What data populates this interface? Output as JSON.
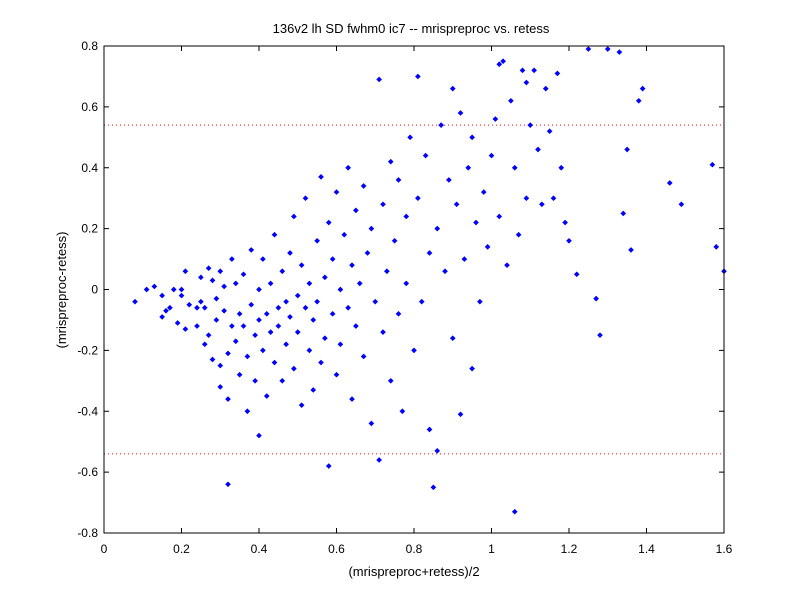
{
  "chart_data": {
    "type": "scatter",
    "title": "136v2 lh SD fwhm0 ic7 -- mrispreproc vs. retess",
    "xlabel": "(mrispreproc+retess)/2",
    "ylabel": "(mrispreproc-retess)",
    "xlim": [
      0,
      1.6
    ],
    "ylim": [
      -0.8,
      0.8
    ],
    "xticks": [
      "0",
      "0.2",
      "0.4",
      "0.6",
      "0.8",
      "1",
      "1.2",
      "1.4",
      "1.6"
    ],
    "yticks": [
      "-0.8",
      "-0.6",
      "-0.4",
      "-0.2",
      "0",
      "0.2",
      "0.4",
      "0.6",
      "0.8"
    ],
    "grid": false,
    "marker_color": "#0000ff",
    "reference_lines": [
      {
        "y": 0.54,
        "style": "dotted",
        "color": "#ff0000"
      },
      {
        "y": -0.54,
        "style": "dotted",
        "color": "#ff0000"
      }
    ],
    "points": [
      [
        0.08,
        -0.04
      ],
      [
        0.11,
        0.0
      ],
      [
        0.13,
        0.01
      ],
      [
        0.15,
        -0.02
      ],
      [
        0.15,
        -0.09
      ],
      [
        0.16,
        -0.07
      ],
      [
        0.17,
        -0.06
      ],
      [
        0.19,
        -0.11
      ],
      [
        0.18,
        0.0
      ],
      [
        0.2,
        -0.02
      ],
      [
        0.2,
        0.0
      ],
      [
        0.22,
        -0.05
      ],
      [
        0.21,
        -0.13
      ],
      [
        0.21,
        0.06
      ],
      [
        0.24,
        -0.06
      ],
      [
        0.24,
        -0.12
      ],
      [
        0.25,
        -0.04
      ],
      [
        0.25,
        0.04
      ],
      [
        0.26,
        -0.06
      ],
      [
        0.26,
        -0.18
      ],
      [
        0.27,
        0.07
      ],
      [
        0.27,
        -0.15
      ],
      [
        0.28,
        0.03
      ],
      [
        0.28,
        -0.23
      ],
      [
        0.29,
        -0.1
      ],
      [
        0.29,
        -0.03
      ],
      [
        0.3,
        0.06
      ],
      [
        0.3,
        -0.25
      ],
      [
        0.3,
        -0.32
      ],
      [
        0.31,
        -0.07
      ],
      [
        0.31,
        0.01
      ],
      [
        0.32,
        -0.36
      ],
      [
        0.32,
        -0.64
      ],
      [
        0.32,
        -0.21
      ],
      [
        0.33,
        0.1
      ],
      [
        0.33,
        -0.12
      ],
      [
        0.34,
        -0.17
      ],
      [
        0.34,
        0.02
      ],
      [
        0.35,
        -0.08
      ],
      [
        0.35,
        -0.28
      ],
      [
        0.36,
        -0.12
      ],
      [
        0.36,
        0.05
      ],
      [
        0.37,
        -0.22
      ],
      [
        0.37,
        -0.4
      ],
      [
        0.38,
        0.13
      ],
      [
        0.38,
        -0.05
      ],
      [
        0.39,
        -0.15
      ],
      [
        0.39,
        -0.3
      ],
      [
        0.4,
        -0.48
      ],
      [
        0.4,
        0.0
      ],
      [
        0.4,
        -0.1
      ],
      [
        0.41,
        -0.2
      ],
      [
        0.41,
        0.1
      ],
      [
        0.42,
        -0.08
      ],
      [
        0.42,
        -0.35
      ],
      [
        0.43,
        0.02
      ],
      [
        0.43,
        -0.14
      ],
      [
        0.44,
        -0.24
      ],
      [
        0.44,
        0.18
      ],
      [
        0.45,
        -0.06
      ],
      [
        0.45,
        -0.12
      ],
      [
        0.46,
        -0.3
      ],
      [
        0.46,
        0.06
      ],
      [
        0.47,
        -0.04
      ],
      [
        0.47,
        -0.18
      ],
      [
        0.48,
        0.12
      ],
      [
        0.48,
        -0.09
      ],
      [
        0.49,
        -0.26
      ],
      [
        0.49,
        0.24
      ],
      [
        0.5,
        -0.02
      ],
      [
        0.5,
        -0.14
      ],
      [
        0.51,
        -0.38
      ],
      [
        0.51,
        0.08
      ],
      [
        0.52,
        -0.06
      ],
      [
        0.52,
        0.3
      ],
      [
        0.53,
        -0.2
      ],
      [
        0.53,
        0.02
      ],
      [
        0.54,
        -0.1
      ],
      [
        0.54,
        -0.33
      ],
      [
        0.55,
        0.16
      ],
      [
        0.55,
        -0.04
      ],
      [
        0.56,
        0.37
      ],
      [
        0.56,
        -0.24
      ],
      [
        0.57,
        0.04
      ],
      [
        0.57,
        -0.16
      ],
      [
        0.58,
        0.22
      ],
      [
        0.58,
        -0.58
      ],
      [
        0.59,
        -0.08
      ],
      [
        0.59,
        0.1
      ],
      [
        0.6,
        -0.28
      ],
      [
        0.6,
        0.32
      ],
      [
        0.61,
        0.0
      ],
      [
        0.61,
        -0.18
      ],
      [
        0.62,
        0.18
      ],
      [
        0.63,
        -0.06
      ],
      [
        0.63,
        0.4
      ],
      [
        0.64,
        -0.36
      ],
      [
        0.64,
        0.08
      ],
      [
        0.65,
        0.26
      ],
      [
        0.65,
        -0.12
      ],
      [
        0.66,
        0.02
      ],
      [
        0.67,
        -0.22
      ],
      [
        0.67,
        0.34
      ],
      [
        0.68,
        0.12
      ],
      [
        0.69,
        -0.44
      ],
      [
        0.69,
        0.2
      ],
      [
        0.7,
        -0.04
      ],
      [
        0.71,
        0.69
      ],
      [
        0.71,
        -0.56
      ],
      [
        0.72,
        0.28
      ],
      [
        0.72,
        -0.14
      ],
      [
        0.73,
        0.06
      ],
      [
        0.74,
        0.42
      ],
      [
        0.74,
        -0.3
      ],
      [
        0.75,
        0.16
      ],
      [
        0.76,
        -0.08
      ],
      [
        0.76,
        0.36
      ],
      [
        0.77,
        -0.4
      ],
      [
        0.78,
        0.24
      ],
      [
        0.78,
        0.02
      ],
      [
        0.79,
        0.5
      ],
      [
        0.8,
        -0.2
      ],
      [
        0.81,
        0.3
      ],
      [
        0.81,
        0.7
      ],
      [
        0.82,
        -0.04
      ],
      [
        0.83,
        0.44
      ],
      [
        0.84,
        0.12
      ],
      [
        0.84,
        -0.46
      ],
      [
        0.85,
        -0.65
      ],
      [
        0.86,
        0.2
      ],
      [
        0.86,
        -0.53
      ],
      [
        0.87,
        0.54
      ],
      [
        0.88,
        0.06
      ],
      [
        0.89,
        0.36
      ],
      [
        0.9,
        -0.16
      ],
      [
        0.9,
        0.66
      ],
      [
        0.91,
        0.28
      ],
      [
        0.92,
        -0.41
      ],
      [
        0.92,
        0.58
      ],
      [
        0.93,
        0.1
      ],
      [
        0.94,
        0.4
      ],
      [
        0.95,
        -0.26
      ],
      [
        0.95,
        0.5
      ],
      [
        0.96,
        0.22
      ],
      [
        0.97,
        -0.04
      ],
      [
        0.98,
        0.32
      ],
      [
        0.99,
        0.14
      ],
      [
        1.0,
        0.44
      ],
      [
        1.01,
        0.56
      ],
      [
        1.02,
        0.74
      ],
      [
        1.02,
        0.24
      ],
      [
        1.03,
        0.75
      ],
      [
        1.04,
        0.08
      ],
      [
        1.05,
        0.62
      ],
      [
        1.06,
        -0.73
      ],
      [
        1.06,
        0.4
      ],
      [
        1.07,
        0.18
      ],
      [
        1.08,
        0.72
      ],
      [
        1.09,
        0.68
      ],
      [
        1.09,
        0.3
      ],
      [
        1.1,
        0.54
      ],
      [
        1.11,
        0.72
      ],
      [
        1.12,
        0.46
      ],
      [
        1.13,
        0.28
      ],
      [
        1.14,
        0.66
      ],
      [
        1.15,
        0.52
      ],
      [
        1.16,
        0.3
      ],
      [
        1.17,
        0.71
      ],
      [
        1.18,
        0.4
      ],
      [
        1.19,
        0.22
      ],
      [
        1.2,
        0.16
      ],
      [
        1.22,
        0.05
      ],
      [
        1.25,
        0.79
      ],
      [
        1.27,
        -0.03
      ],
      [
        1.28,
        -0.15
      ],
      [
        1.3,
        0.79
      ],
      [
        1.33,
        0.78
      ],
      [
        1.34,
        0.25
      ],
      [
        1.35,
        0.46
      ],
      [
        1.36,
        0.13
      ],
      [
        1.38,
        0.62
      ],
      [
        1.39,
        0.66
      ],
      [
        1.46,
        0.35
      ],
      [
        1.49,
        0.28
      ],
      [
        1.57,
        0.41
      ],
      [
        1.58,
        0.14
      ],
      [
        1.6,
        0.06
      ]
    ]
  }
}
